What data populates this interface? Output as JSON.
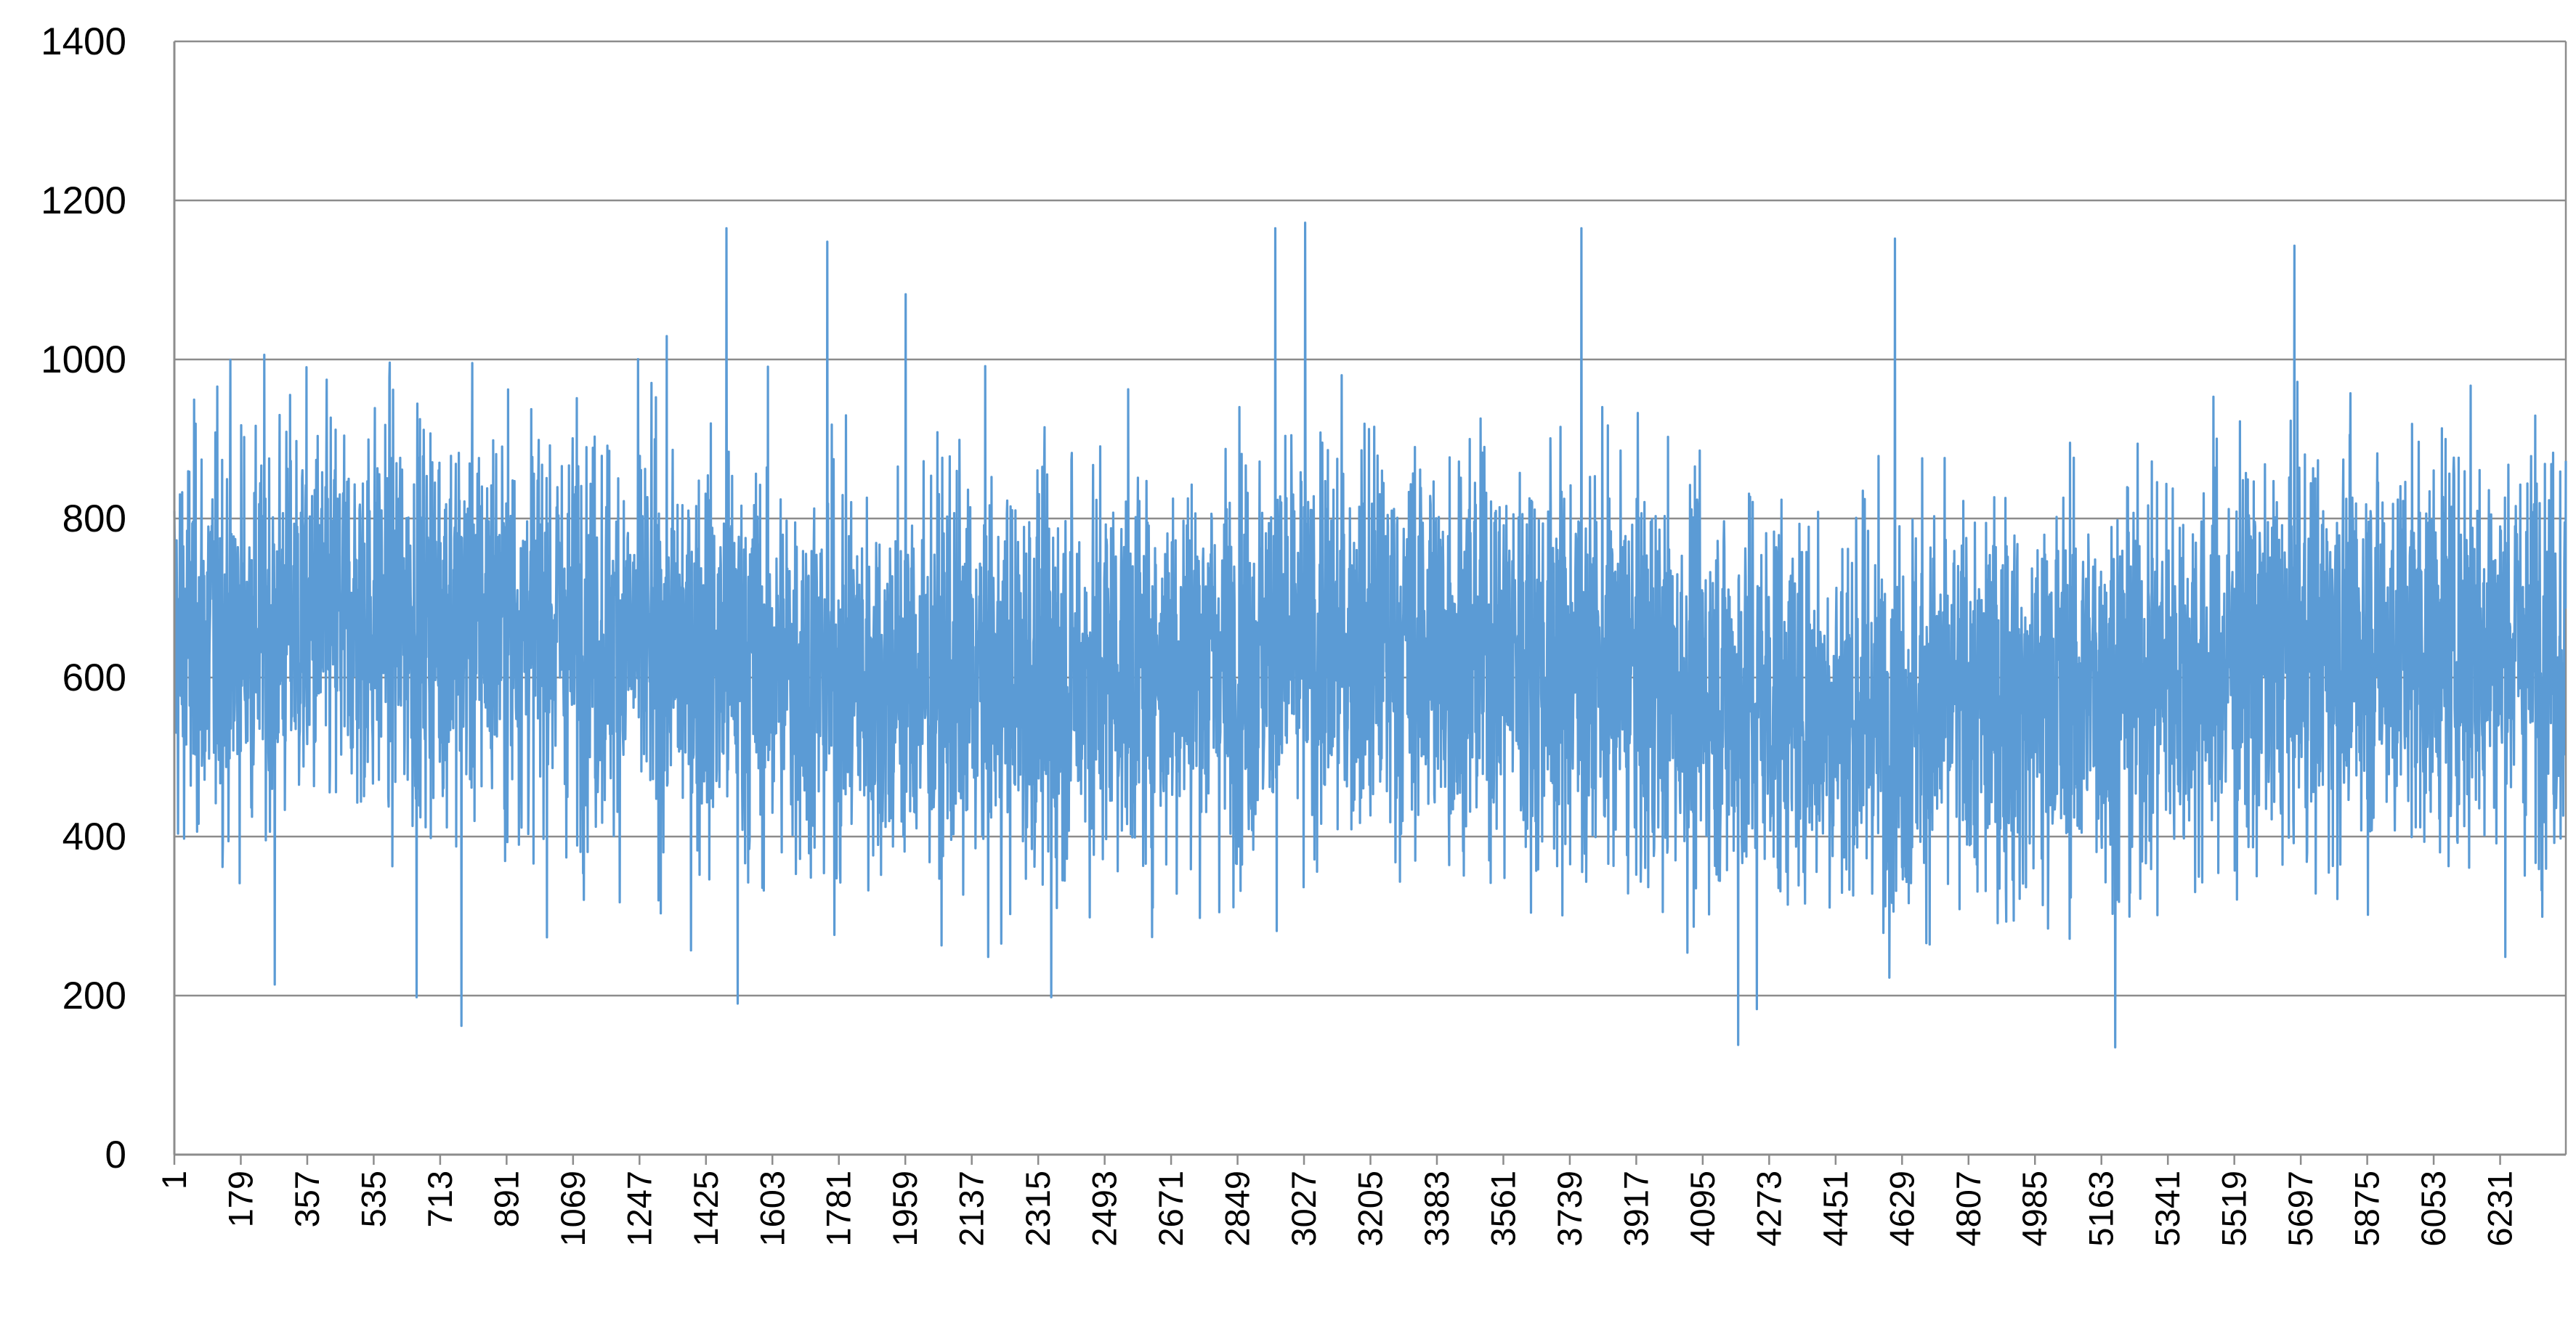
{
  "chart_data": {
    "type": "line",
    "title": "",
    "xlabel": "",
    "ylabel": "",
    "ylim": [
      0,
      1400
    ],
    "yticks": [
      "0",
      "200",
      "400",
      "600",
      "800",
      "1000",
      "1200",
      "1400"
    ],
    "xlim": [
      1,
      6407
    ],
    "x_tick_labels": [
      "1",
      "179",
      "357",
      "535",
      "713",
      "891",
      "1069",
      "1247",
      "1425",
      "1603",
      "1781",
      "1959",
      "2137",
      "2315",
      "2493",
      "2671",
      "2849",
      "3027",
      "3205",
      "3383",
      "3561",
      "3739",
      "3917",
      "4095",
      "4273",
      "4451",
      "4629",
      "4807",
      "4985",
      "5163",
      "5341",
      "5519",
      "5697",
      "5875",
      "6053",
      "6231"
    ],
    "grid": "horizontal major gridlines",
    "legend": "none",
    "series_color": "#5B9BD5",
    "series": [
      {
        "x_start": 1,
        "x_step": 1,
        "n_points": 6407,
        "typical_range": [
          400,
          800
        ],
        "mean_level": 620,
        "extremes": [
          {
            "x": 1480,
            "y": 1165
          },
          {
            "x": 1510,
            "y": 190
          },
          {
            "x": 770,
            "y": 162
          },
          {
            "x": 1750,
            "y": 1148
          },
          {
            "x": 1960,
            "y": 1082
          },
          {
            "x": 2350,
            "y": 198
          },
          {
            "x": 2950,
            "y": 1165
          },
          {
            "x": 3030,
            "y": 1172
          },
          {
            "x": 3770,
            "y": 1165
          },
          {
            "x": 4190,
            "y": 138
          },
          {
            "x": 4240,
            "y": 183
          },
          {
            "x": 4610,
            "y": 1152
          },
          {
            "x": 5200,
            "y": 135
          },
          {
            "x": 5680,
            "y": 1143
          },
          {
            "x": 650,
            "y": 198
          },
          {
            "x": 270,
            "y": 214
          }
        ]
      }
    ]
  }
}
